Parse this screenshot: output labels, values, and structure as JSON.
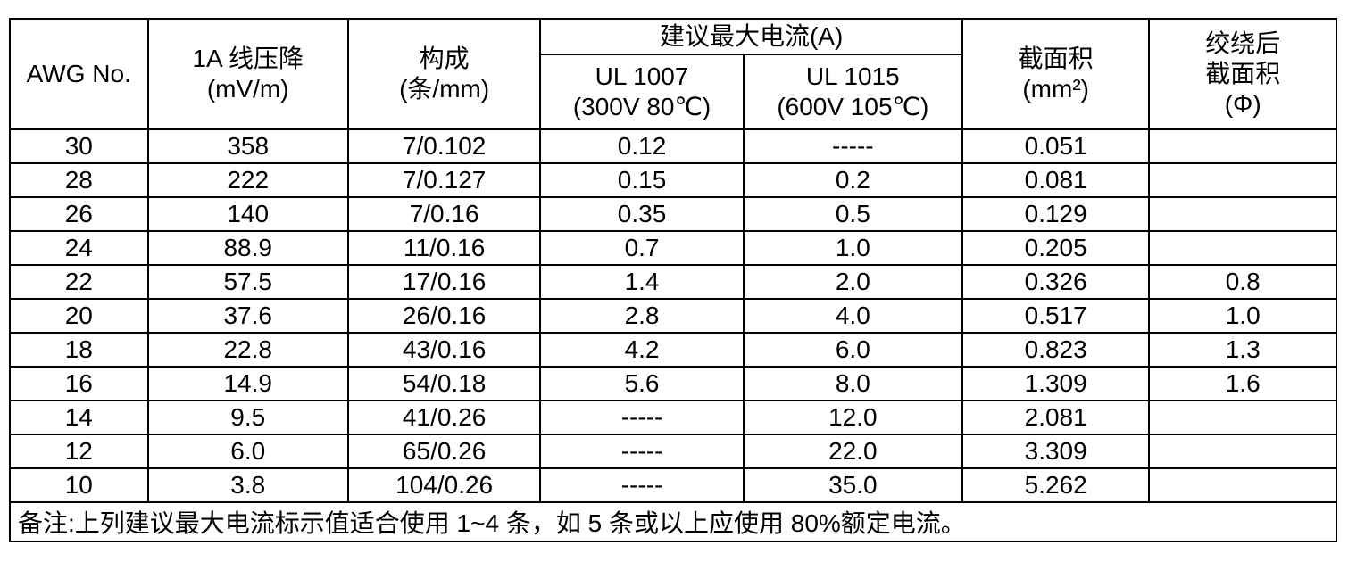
{
  "colors": {
    "background": "#ffffff",
    "text": "#000000",
    "border": "#000000"
  },
  "table": {
    "header": {
      "awg": "AWG No.",
      "voltage_drop": [
        "1A 线压降",
        "(mV/m)"
      ],
      "construction": [
        "构成",
        "(条/mm)"
      ],
      "max_current_group": "建议最大电流(A)",
      "ul1007": [
        "UL 1007",
        "(300V 80℃)"
      ],
      "ul1015": [
        "UL 1015",
        "(600V 105℃)"
      ],
      "cross_section": [
        "截面积",
        "(mm²)"
      ],
      "twisted_cross_section": [
        "绞绕后",
        "截面积",
        "(Φ)"
      ]
    },
    "rows": [
      [
        "30",
        "358",
        "7/0.102",
        "0.12",
        "-----",
        "0.051",
        ""
      ],
      [
        "28",
        "222",
        "7/0.127",
        "0.15",
        "0.2",
        "0.081",
        ""
      ],
      [
        "26",
        "140",
        "7/0.16",
        "0.35",
        "0.5",
        "0.129",
        ""
      ],
      [
        "24",
        "88.9",
        "11/0.16",
        "0.7",
        "1.0",
        "0.205",
        ""
      ],
      [
        "22",
        "57.5",
        "17/0.16",
        "1.4",
        "2.0",
        "0.326",
        "0.8"
      ],
      [
        "20",
        "37.6",
        "26/0.16",
        "2.8",
        "4.0",
        "0.517",
        "1.0"
      ],
      [
        "18",
        "22.8",
        "43/0.16",
        "4.2",
        "6.0",
        "0.823",
        "1.3"
      ],
      [
        "16",
        "14.9",
        "54/0.18",
        "5.6",
        "8.0",
        "1.309",
        "1.6"
      ],
      [
        "14",
        "9.5",
        "41/0.26",
        "-----",
        "12.0",
        "2.081",
        ""
      ],
      [
        "12",
        "6.0",
        "65/0.26",
        "-----",
        "22.0",
        "3.309",
        ""
      ],
      [
        "10",
        "3.8",
        "104/0.26",
        "-----",
        "35.0",
        "5.262",
        ""
      ]
    ],
    "note": "备注:上列建议最大电流标示值适合使用 1~4 条，如 5 条或以上应使用 80%额定电流。"
  }
}
